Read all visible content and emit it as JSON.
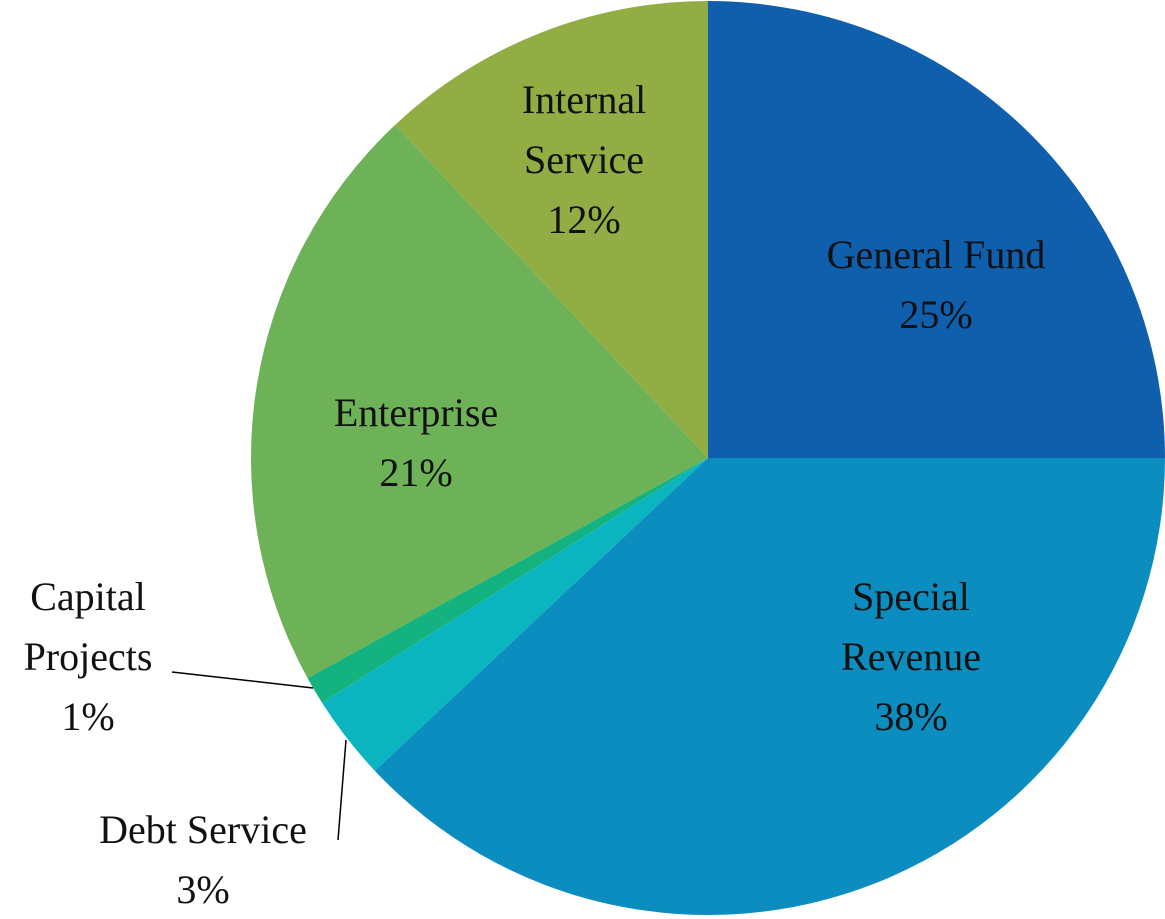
{
  "chart_data": {
    "type": "pie",
    "categories": [
      "General Fund",
      "Special Revenue",
      "Debt Service",
      "Capital Projects",
      "Enterprise",
      "Internal Service"
    ],
    "values": [
      25,
      38,
      3,
      1,
      21,
      12
    ],
    "value_labels": [
      "25%",
      "38%",
      "3%",
      "1%",
      "21%",
      "12%"
    ],
    "colors": [
      "#0f5fad",
      "#0b8dc0",
      "#0ab5bf",
      "#14b27f",
      "#6db257",
      "#93ad45"
    ]
  }
}
